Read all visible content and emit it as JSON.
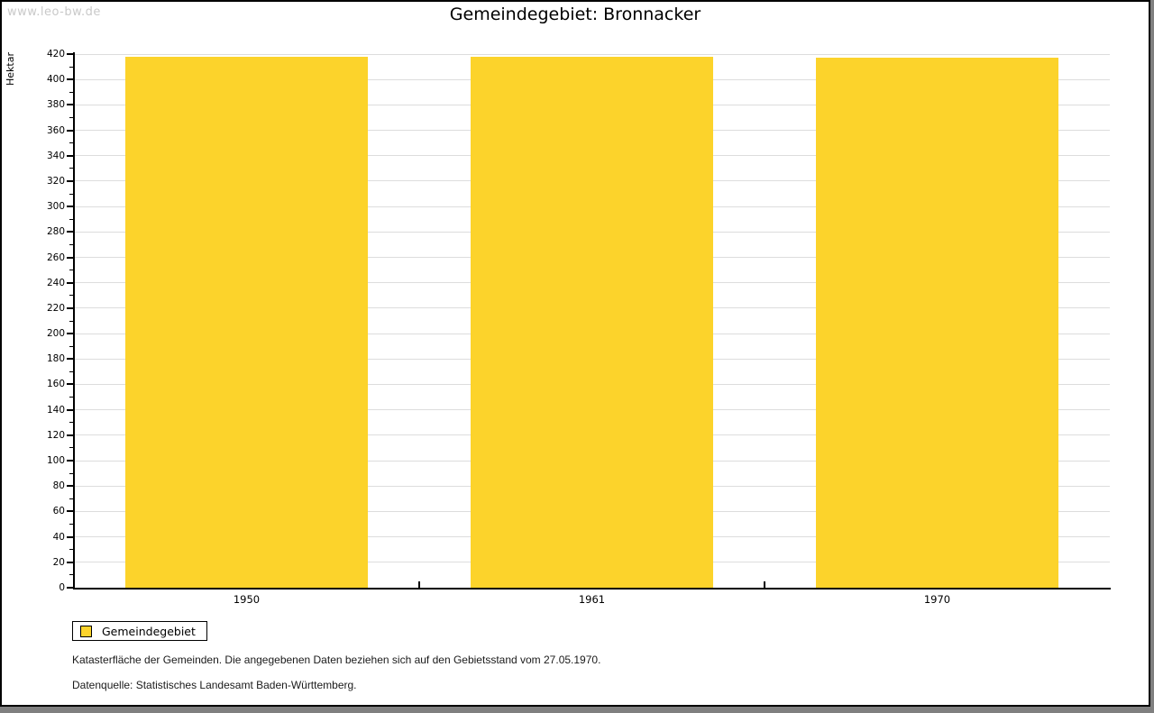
{
  "watermark": "www.leo-bw.de",
  "title": "Gemeindegebiet: Bronnacker",
  "legend": {
    "label": "Gemeindegebiet",
    "swatch_color": "#FCD32B"
  },
  "footnotes": [
    "Katasterfläche der Gemeinden. Die angegebenen Daten beziehen sich auf den Gebietsstand vom 27.05.1970.",
    "Datenquelle: Statistisches Landesamt Baden-Württemberg."
  ],
  "chart_data": {
    "type": "bar",
    "categories": [
      "1950",
      "1961",
      "1970"
    ],
    "series": [
      {
        "name": "Gemeindegebiet",
        "values": [
          418,
          418,
          417
        ]
      }
    ],
    "title": "Gemeindegebiet: Bronnacker",
    "xlabel": "",
    "ylabel": "Hektar",
    "ylim": [
      0,
      420
    ],
    "ytick_step": 20,
    "yminor_step": 10,
    "grid": true,
    "legend_position": "bottom-left",
    "bar_color": "#FCD32B",
    "gridline_color": "#DDDDDD",
    "unit": "Hektar"
  }
}
